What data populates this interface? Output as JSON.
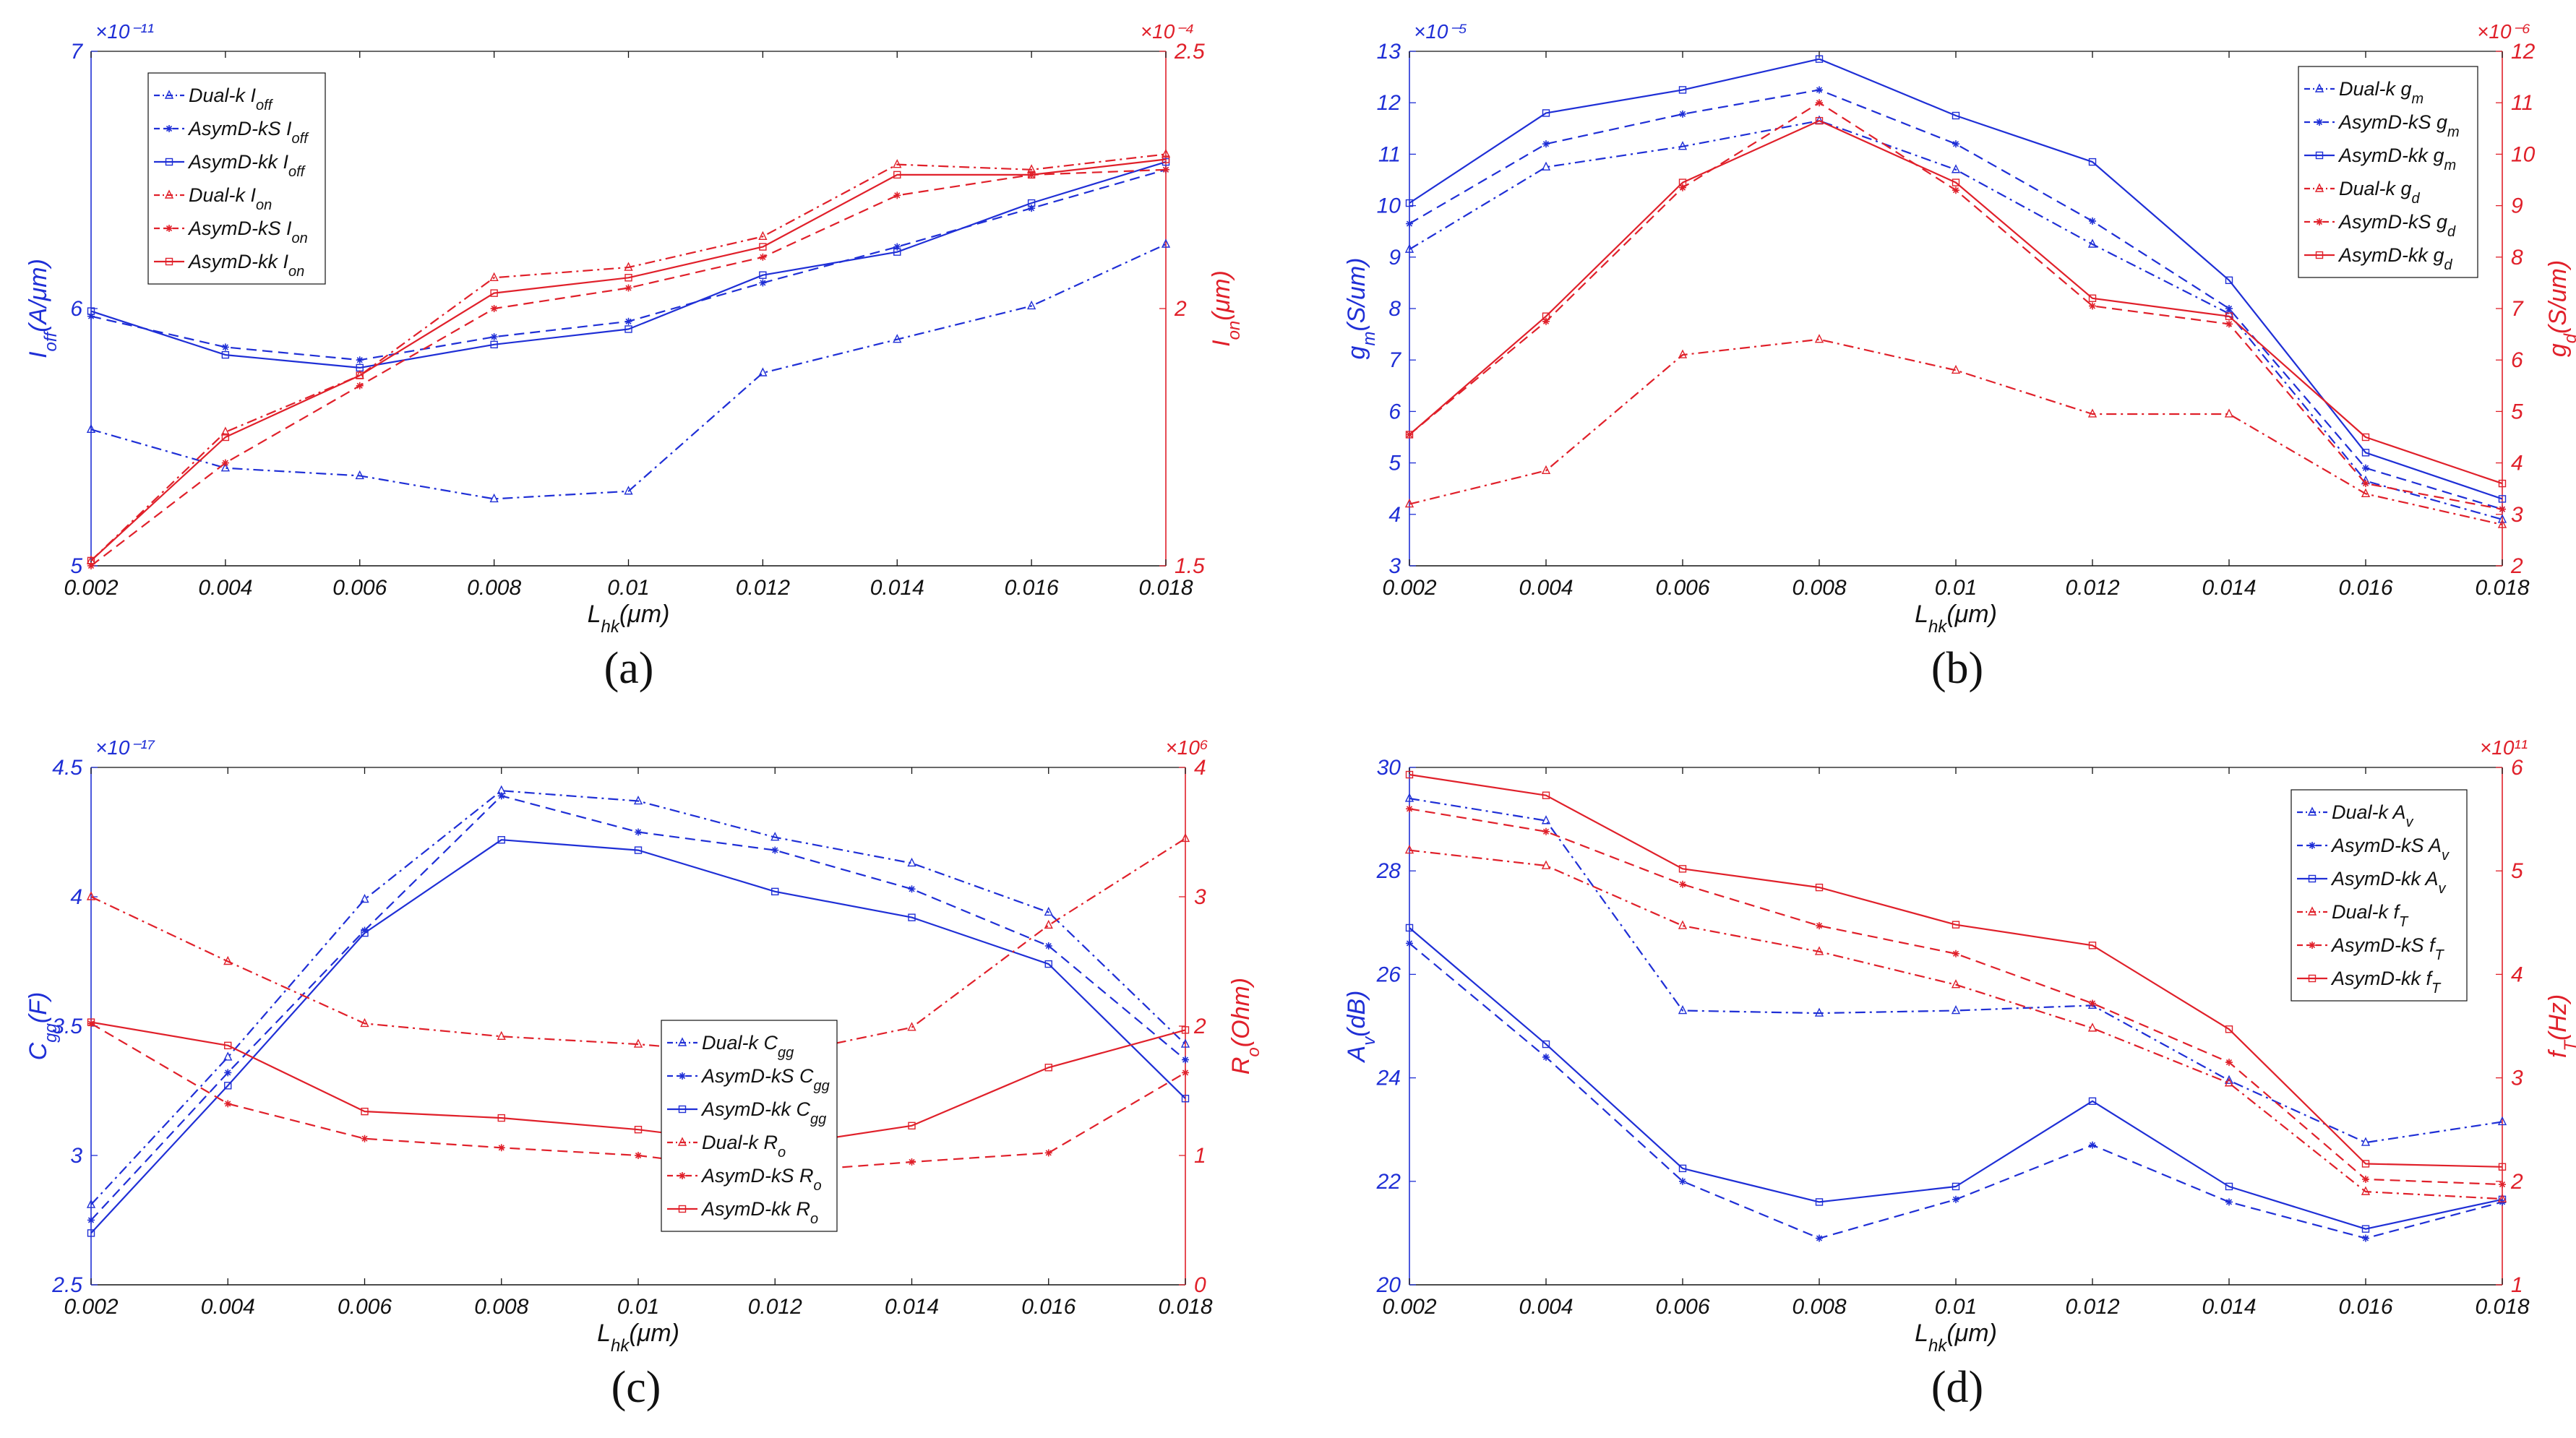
{
  "figure": {
    "colors": {
      "blue": "#1f2fd6",
      "red": "#e0202a",
      "black": "#111111"
    }
  },
  "chart_data": [
    {
      "id": "a",
      "type": "line",
      "panel_label": "(a)",
      "xlabel": {
        "main": "L",
        "sub": "hk",
        "rest": "(μm)"
      },
      "x": [
        0.002,
        0.004,
        0.006,
        0.008,
        0.01,
        0.012,
        0.014,
        0.016,
        0.018
      ],
      "xticks": [
        "0.002",
        "0.004",
        "0.006",
        "0.008",
        "0.01",
        "0.012",
        "0.014",
        "0.016",
        "0.018"
      ],
      "left_axis": {
        "label": {
          "main": "I",
          "sub": "off",
          "rest": "(A/μm)"
        },
        "ylim": [
          5,
          7
        ],
        "ticks": [
          5,
          6,
          7
        ],
        "tick_labels": [
          "5",
          "6",
          "7"
        ],
        "exponent": "×10⁻¹¹"
      },
      "right_axis": {
        "label": {
          "main": "I",
          "sub": "on",
          "rest": "(μm)"
        },
        "ylim": [
          1.5,
          2.5
        ],
        "ticks": [
          1.5,
          2,
          2.5
        ],
        "tick_labels": [
          "1.5",
          "2",
          "2.5"
        ],
        "exponent": "×10⁻⁴"
      },
      "legend": {
        "position": "top-left"
      },
      "series": [
        {
          "name": "Dual-k I",
          "sub": "off",
          "axis": "left",
          "color": "blue",
          "dash": "dashdot",
          "marker": "triangle",
          "values": [
            5.53,
            5.38,
            5.35,
            5.26,
            5.29,
            5.75,
            5.88,
            6.01,
            6.25
          ]
        },
        {
          "name": "AsymD-kS I",
          "sub": "off",
          "axis": "left",
          "color": "blue",
          "dash": "dashed",
          "marker": "star",
          "values": [
            5.97,
            5.85,
            5.8,
            5.89,
            5.95,
            6.1,
            6.24,
            6.39,
            6.54
          ]
        },
        {
          "name": "AsymD-kk I",
          "sub": "off",
          "axis": "left",
          "color": "blue",
          "dash": "solid",
          "marker": "square",
          "values": [
            5.99,
            5.82,
            5.77,
            5.86,
            5.92,
            6.13,
            6.22,
            6.41,
            6.57
          ]
        },
        {
          "name": "Dual-k I",
          "sub": "on",
          "axis": "right",
          "color": "red",
          "dash": "dashdot",
          "marker": "triangle",
          "values": [
            1.51,
            1.76,
            1.87,
            2.06,
            2.08,
            2.14,
            2.28,
            2.27,
            2.3
          ]
        },
        {
          "name": "AsymD-kS I",
          "sub": "on",
          "axis": "right",
          "color": "red",
          "dash": "dashed",
          "marker": "star",
          "values": [
            1.5,
            1.7,
            1.85,
            2.0,
            2.04,
            2.1,
            2.22,
            2.26,
            2.27
          ]
        },
        {
          "name": "AsymD-kk I",
          "sub": "on",
          "axis": "right",
          "color": "red",
          "dash": "solid",
          "marker": "square",
          "values": [
            1.51,
            1.75,
            1.87,
            2.03,
            2.06,
            2.12,
            2.26,
            2.26,
            2.29
          ]
        }
      ]
    },
    {
      "id": "b",
      "type": "line",
      "panel_label": "(b)",
      "xlabel": {
        "main": "L",
        "sub": "hk",
        "rest": "(μm)"
      },
      "x": [
        0.002,
        0.004,
        0.006,
        0.008,
        0.01,
        0.012,
        0.014,
        0.016,
        0.018
      ],
      "xticks": [
        "0.002",
        "0.004",
        "0.006",
        "0.008",
        "0.01",
        "0.012",
        "0.014",
        "0.016",
        "0.018"
      ],
      "left_axis": {
        "label": {
          "main": "g",
          "sub": "m",
          "rest": "(S/um)"
        },
        "ylim": [
          3,
          13
        ],
        "ticks": [
          3,
          4,
          5,
          6,
          7,
          8,
          9,
          10,
          11,
          12,
          13
        ],
        "tick_labels": [
          "3",
          "4",
          "5",
          "6",
          "7",
          "8",
          "9",
          "10",
          "11",
          "12",
          "13"
        ],
        "exponent": "×10⁻⁵"
      },
      "right_axis": {
        "label": {
          "main": "g",
          "sub": "d",
          "rest": "(S/um)"
        },
        "ylim": [
          2,
          12
        ],
        "ticks": [
          2,
          3,
          4,
          5,
          6,
          7,
          8,
          9,
          10,
          11,
          12
        ],
        "tick_labels": [
          "2",
          "3",
          "4",
          "5",
          "6",
          "7",
          "8",
          "9",
          "10",
          "11",
          "12"
        ],
        "exponent": "×10⁻⁶"
      },
      "legend": {
        "position": "top-right"
      },
      "series": [
        {
          "name": "Dual-k g",
          "sub": "m",
          "axis": "left",
          "color": "blue",
          "dash": "dashdot",
          "marker": "triangle",
          "values": [
            9.15,
            10.75,
            11.15,
            11.65,
            10.7,
            9.25,
            7.9,
            4.65,
            3.9
          ]
        },
        {
          "name": "AsymD-kS g",
          "sub": "m",
          "axis": "left",
          "color": "blue",
          "dash": "dashed",
          "marker": "star",
          "values": [
            9.65,
            11.2,
            11.78,
            12.25,
            11.2,
            9.7,
            8.0,
            4.9,
            4.1
          ]
        },
        {
          "name": "AsymD-kk g",
          "sub": "m",
          "axis": "left",
          "color": "blue",
          "dash": "solid",
          "marker": "square",
          "values": [
            10.05,
            11.8,
            12.25,
            12.85,
            11.75,
            10.85,
            8.55,
            5.2,
            4.3
          ]
        },
        {
          "name": "Dual-k g",
          "sub": "d",
          "axis": "right",
          "color": "red",
          "dash": "dashdot",
          "marker": "triangle",
          "values": [
            3.2,
            3.85,
            6.1,
            6.4,
            5.8,
            4.95,
            4.95,
            3.4,
            2.8
          ]
        },
        {
          "name": "AsymD-kS g",
          "sub": "d",
          "axis": "right",
          "color": "red",
          "dash": "dashed",
          "marker": "star",
          "values": [
            4.55,
            6.75,
            9.35,
            11.0,
            9.3,
            7.05,
            6.7,
            3.6,
            3.1
          ]
        },
        {
          "name": "AsymD-kk g",
          "sub": "d",
          "axis": "right",
          "color": "red",
          "dash": "solid",
          "marker": "square",
          "values": [
            4.55,
            6.85,
            9.45,
            10.65,
            9.45,
            7.2,
            6.85,
            4.5,
            3.6
          ]
        }
      ]
    },
    {
      "id": "c",
      "type": "line",
      "panel_label": "(c)",
      "xlabel": {
        "main": "L",
        "sub": "hk",
        "rest": "(μm)"
      },
      "x": [
        0.002,
        0.004,
        0.006,
        0.008,
        0.01,
        0.012,
        0.014,
        0.016,
        0.018
      ],
      "xticks": [
        "0.002",
        "0.004",
        "0.006",
        "0.008",
        "0.01",
        "0.012",
        "0.014",
        "0.016",
        "0.018"
      ],
      "left_axis": {
        "label": {
          "main": "C",
          "sub": "gg",
          "rest": "(F)"
        },
        "ylim": [
          2.5,
          4.5
        ],
        "ticks": [
          2.5,
          3,
          3.5,
          4,
          4.5
        ],
        "tick_labels": [
          "2.5",
          "3",
          "3.5",
          "4",
          "4.5"
        ],
        "exponent": "×10⁻¹⁷"
      },
      "right_axis": {
        "label": {
          "main": "R",
          "sub": "o",
          "rest": "(Ohm)"
        },
        "ylim": [
          0,
          4
        ],
        "ticks": [
          0,
          1,
          2,
          3,
          4
        ],
        "tick_labels": [
          "0",
          "1",
          "2",
          "3",
          "4"
        ],
        "exponent": "×10⁶"
      },
      "legend": {
        "position": "center-right"
      },
      "series": [
        {
          "name": "Dual-k C",
          "sub": "gg",
          "axis": "left",
          "color": "blue",
          "dash": "dashdot",
          "marker": "triangle",
          "values": [
            2.81,
            3.38,
            3.99,
            4.41,
            4.37,
            4.23,
            4.13,
            3.94,
            3.43
          ]
        },
        {
          "name": "AsymD-kS C",
          "sub": "gg",
          "axis": "left",
          "color": "blue",
          "dash": "dashed",
          "marker": "star",
          "values": [
            2.75,
            3.32,
            3.87,
            4.39,
            4.25,
            4.18,
            4.03,
            3.81,
            3.37
          ]
        },
        {
          "name": "AsymD-kk C",
          "sub": "gg",
          "axis": "left",
          "color": "blue",
          "dash": "solid",
          "marker": "square",
          "values": [
            2.7,
            3.27,
            3.86,
            4.22,
            4.18,
            4.02,
            3.92,
            3.74,
            3.22
          ]
        },
        {
          "name": "Dual-k R",
          "sub": "o",
          "axis": "right",
          "color": "red",
          "dash": "dashdot",
          "marker": "triangle",
          "values": [
            3.0,
            2.5,
            2.02,
            1.92,
            1.86,
            1.77,
            1.99,
            2.78,
            3.45
          ]
        },
        {
          "name": "AsymD-kS R",
          "sub": "o",
          "axis": "right",
          "color": "red",
          "dash": "dashed",
          "marker": "star",
          "values": [
            2.02,
            1.4,
            1.13,
            1.06,
            1.0,
            0.87,
            0.95,
            1.02,
            1.64
          ]
        },
        {
          "name": "AsymD-kk R",
          "sub": "o",
          "axis": "right",
          "color": "red",
          "dash": "solid",
          "marker": "square",
          "values": [
            2.03,
            1.85,
            1.34,
            1.29,
            1.2,
            1.07,
            1.23,
            1.68,
            1.97
          ]
        }
      ]
    },
    {
      "id": "d",
      "type": "line",
      "panel_label": "(d)",
      "xlabel": {
        "main": "L",
        "sub": "hk",
        "rest": "(μm)"
      },
      "x": [
        0.002,
        0.004,
        0.006,
        0.008,
        0.01,
        0.012,
        0.014,
        0.016,
        0.018
      ],
      "xticks": [
        "0.002",
        "0.004",
        "0.006",
        "0.008",
        "0.01",
        "0.012",
        "0.014",
        "0.016",
        "0.018"
      ],
      "left_axis": {
        "label": {
          "main": "A",
          "sub": "v",
          "rest": "(dB)"
        },
        "ylim": [
          20,
          30
        ],
        "ticks": [
          20,
          22,
          24,
          26,
          28,
          30
        ],
        "tick_labels": [
          "20",
          "22",
          "24",
          "26",
          "28",
          "30"
        ],
        "exponent": ""
      },
      "right_axis": {
        "label": {
          "main": "f",
          "sub": "T",
          "rest": "(Hz)"
        },
        "ylim": [
          1,
          6
        ],
        "ticks": [
          1,
          2,
          3,
          4,
          5,
          6
        ],
        "tick_labels": [
          "1",
          "2",
          "3",
          "4",
          "5",
          "6"
        ],
        "exponent": "×10¹¹"
      },
      "legend": {
        "position": "top-right"
      },
      "series": [
        {
          "name": "Dual-k A",
          "sub": "v",
          "axis": "left",
          "color": "blue",
          "dash": "dashdot",
          "marker": "triangle",
          "values": [
            29.4,
            28.97,
            25.3,
            25.25,
            25.3,
            25.4,
            23.95,
            22.75,
            23.15
          ]
        },
        {
          "name": "AsymD-kS A",
          "sub": "v",
          "axis": "left",
          "color": "blue",
          "dash": "dashed",
          "marker": "star",
          "values": [
            26.6,
            24.4,
            22.0,
            20.9,
            21.65,
            22.7,
            21.6,
            20.9,
            21.6
          ]
        },
        {
          "name": "AsymD-kk A",
          "sub": "v",
          "axis": "left",
          "color": "blue",
          "dash": "solid",
          "marker": "square",
          "values": [
            26.9,
            24.65,
            22.25,
            21.6,
            21.9,
            23.55,
            21.9,
            21.08,
            21.65
          ]
        },
        {
          "name": "Dual-k f",
          "sub": "T",
          "axis": "right",
          "color": "red",
          "dash": "dashdot",
          "marker": "triangle",
          "values": [
            5.2,
            5.05,
            4.47,
            4.22,
            3.9,
            3.48,
            2.95,
            1.9,
            1.83
          ]
        },
        {
          "name": "AsymD-kS f",
          "sub": "T",
          "axis": "right",
          "color": "red",
          "dash": "dashed",
          "marker": "star",
          "values": [
            5.6,
            5.38,
            4.87,
            4.47,
            4.2,
            3.72,
            3.15,
            2.02,
            1.97
          ]
        },
        {
          "name": "AsymD-kk f",
          "sub": "T",
          "axis": "right",
          "color": "red",
          "dash": "solid",
          "marker": "square",
          "values": [
            5.93,
            5.73,
            5.02,
            4.84,
            4.48,
            4.28,
            3.47,
            2.17,
            2.14
          ]
        }
      ]
    }
  ]
}
